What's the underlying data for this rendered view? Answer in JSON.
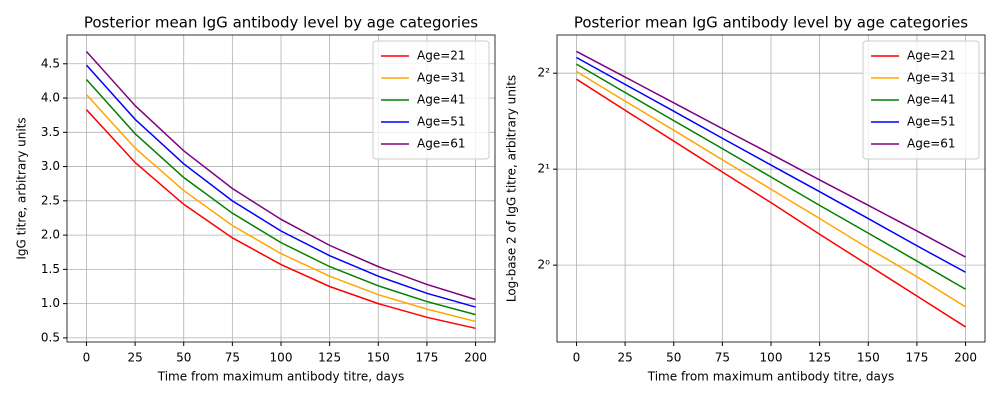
{
  "chart_data": [
    {
      "type": "line",
      "title": "Posterior mean IgG antibody level by age categories",
      "xlabel": "Time from maximum antibody titre, days",
      "ylabel": "IgG titre, arbitrary units",
      "x": [
        0,
        25,
        50,
        75,
        100,
        125,
        150,
        175,
        200
      ],
      "series": [
        {
          "name": "Age=21",
          "color": "#ff0000",
          "values": [
            3.83,
            3.06,
            2.45,
            1.96,
            1.57,
            1.25,
            1.0,
            0.8,
            0.64
          ]
        },
        {
          "name": "Age=31",
          "color": "#ffa500",
          "values": [
            4.05,
            3.27,
            2.65,
            2.14,
            1.73,
            1.4,
            1.13,
            0.92,
            0.74
          ]
        },
        {
          "name": "Age=41",
          "color": "#008000",
          "values": [
            4.27,
            3.48,
            2.84,
            2.32,
            1.89,
            1.54,
            1.26,
            1.03,
            0.84
          ]
        },
        {
          "name": "Age=51",
          "color": "#0000ff",
          "values": [
            4.48,
            3.69,
            3.04,
            2.5,
            2.06,
            1.7,
            1.4,
            1.15,
            0.95
          ]
        },
        {
          "name": "Age=61",
          "color": "#800080",
          "values": [
            4.68,
            3.89,
            3.23,
            2.68,
            2.23,
            1.85,
            1.54,
            1.28,
            1.06
          ]
        }
      ],
      "xlim": [
        -10,
        210
      ],
      "ylim": [
        0.44,
        4.92
      ],
      "xticks": [
        0,
        25,
        50,
        75,
        100,
        125,
        150,
        175,
        200
      ],
      "yticks": [
        0.5,
        {
          "value": 1,
          "label": "1.0"
        },
        1.5,
        {
          "value": 2,
          "label": "2.0"
        },
        2.5,
        {
          "value": 3,
          "label": "3.0"
        },
        3.5,
        {
          "value": 4,
          "label": "4.0"
        },
        4.5
      ],
      "grid": true,
      "legend": "upper right"
    },
    {
      "type": "line",
      "title": "Posterior mean IgG antibody level by age categories",
      "xlabel": "Time from maximum antibody titre, days",
      "ylabel": "Log-base 2 of IgG titre, arbitrary units",
      "x": [
        0,
        25,
        50,
        75,
        100,
        125,
        150,
        175,
        200
      ],
      "series": [
        {
          "name": "Age=21",
          "color": "#ff0000",
          "values": [
            3.83,
            3.06,
            2.45,
            1.96,
            1.57,
            1.25,
            1.0,
            0.8,
            0.64
          ]
        },
        {
          "name": "Age=31",
          "color": "#ffa500",
          "values": [
            4.05,
            3.27,
            2.65,
            2.14,
            1.73,
            1.4,
            1.13,
            0.92,
            0.74
          ]
        },
        {
          "name": "Age=41",
          "color": "#008000",
          "values": [
            4.27,
            3.48,
            2.84,
            2.32,
            1.89,
            1.54,
            1.26,
            1.03,
            0.84
          ]
        },
        {
          "name": "Age=51",
          "color": "#0000ff",
          "values": [
            4.48,
            3.69,
            3.04,
            2.5,
            2.06,
            1.7,
            1.4,
            1.15,
            0.95
          ]
        },
        {
          "name": "Age=61",
          "color": "#800080",
          "values": [
            4.68,
            3.89,
            3.23,
            2.68,
            2.23,
            1.85,
            1.54,
            1.28,
            1.06
          ]
        }
      ],
      "xlim": [
        -10,
        210
      ],
      "ylim": [
        0.574,
        5.27
      ],
      "xticks": [
        0,
        25,
        50,
        75,
        100,
        125,
        150,
        175,
        200
      ],
      "yticks": [
        {
          "value": 1,
          "label": "2⁰"
        },
        {
          "value": 2,
          "label": "2¹"
        },
        {
          "value": 4,
          "label": "2²"
        }
      ],
      "log_base": 2,
      "grid": true,
      "legend": "upper right"
    }
  ]
}
